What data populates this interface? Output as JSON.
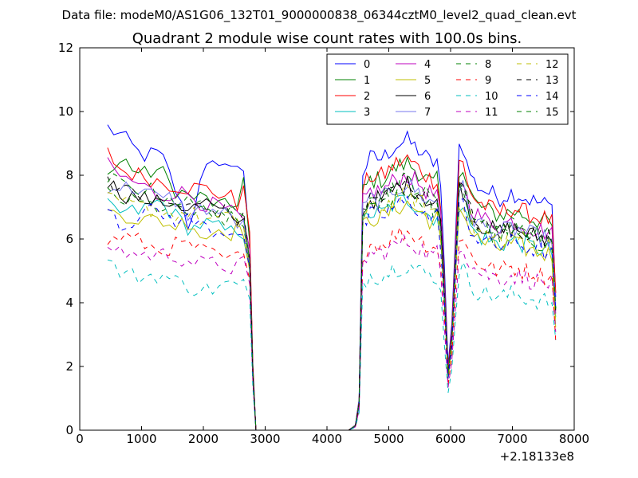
{
  "chart_data": {
    "type": "line",
    "suptitle": "Data file: modeM0/AS1G06_132T01_9000000838_06344cztM0_level2_quad_clean.evt",
    "title": "Quadrant 2 module wise count rates with 100.0s bins.",
    "xlabel": "",
    "ylabel": "",
    "x_offset_label": "+2.18133e8",
    "xlim": [
      0,
      8000
    ],
    "ylim": [
      0,
      12
    ],
    "x_ticks": [
      0,
      1000,
      2000,
      3000,
      4000,
      5000,
      6000,
      7000,
      8000
    ],
    "y_ticks": [
      0,
      2,
      4,
      6,
      8,
      10,
      12
    ],
    "grid": false,
    "legend_position": "top-right",
    "legend_columns": 4,
    "series": [
      {
        "name": "0",
        "color": "#0000ff",
        "dash": "solid",
        "anchors": [
          [
            450,
            9.5
          ],
          [
            700,
            9.2
          ],
          [
            1000,
            8.6
          ],
          [
            1300,
            8.7
          ],
          [
            1500,
            7.8
          ],
          [
            1800,
            6.2
          ],
          [
            2000,
            8.6
          ],
          [
            2300,
            8.0
          ],
          [
            2450,
            8.5
          ],
          [
            2550,
            8.3
          ],
          [
            2650,
            8.0
          ],
          [
            2750,
            6.0
          ]
        ]
      },
      {
        "name": "1",
        "color": "#008000",
        "dash": "solid",
        "anchors": [
          [
            450,
            8.0
          ],
          [
            700,
            8.5
          ],
          [
            1000,
            8.0
          ],
          [
            1300,
            8.2
          ],
          [
            1500,
            7.6
          ],
          [
            1800,
            7.3
          ],
          [
            2000,
            7.3
          ],
          [
            2300,
            7.0
          ],
          [
            2450,
            7.0
          ],
          [
            2550,
            7.2
          ],
          [
            2650,
            7.9
          ],
          [
            2750,
            5.8
          ]
        ]
      },
      {
        "name": "2",
        "color": "#ff0000",
        "dash": "solid",
        "anchors": [
          [
            450,
            8.7
          ],
          [
            700,
            8.1
          ],
          [
            1000,
            8.0
          ],
          [
            1300,
            7.8
          ],
          [
            1500,
            7.7
          ],
          [
            1800,
            7.6
          ],
          [
            2000,
            7.6
          ],
          [
            2300,
            7.4
          ],
          [
            2450,
            7.3
          ],
          [
            2550,
            7.0
          ],
          [
            2650,
            7.9
          ],
          [
            2750,
            6.0
          ]
        ]
      },
      {
        "name": "3",
        "color": "#00bfbf",
        "dash": "solid",
        "anchors": [
          [
            450,
            7.0
          ],
          [
            700,
            6.8
          ],
          [
            1000,
            6.9
          ],
          [
            1300,
            7.2
          ],
          [
            1500,
            6.8
          ],
          [
            1800,
            6.3
          ],
          [
            2000,
            6.5
          ],
          [
            2300,
            6.3
          ],
          [
            2450,
            6.2
          ],
          [
            2550,
            6.3
          ],
          [
            2650,
            6.2
          ],
          [
            2750,
            5.2
          ]
        ]
      },
      {
        "name": "4",
        "color": "#bf00bf",
        "dash": "solid",
        "anchors": [
          [
            450,
            8.3
          ],
          [
            700,
            7.9
          ],
          [
            1000,
            7.7
          ],
          [
            1300,
            7.3
          ],
          [
            1500,
            7.5
          ],
          [
            1800,
            7.4
          ],
          [
            2000,
            7.1
          ],
          [
            2300,
            7.0
          ],
          [
            2450,
            6.8
          ],
          [
            2550,
            6.7
          ],
          [
            2650,
            6.5
          ],
          [
            2750,
            5.5
          ]
        ]
      },
      {
        "name": "5",
        "color": "#bfbf00",
        "dash": "solid",
        "anchors": [
          [
            450,
            6.8
          ],
          [
            700,
            6.8
          ],
          [
            1000,
            6.6
          ],
          [
            1300,
            6.6
          ],
          [
            1500,
            6.4
          ],
          [
            1800,
            6.6
          ],
          [
            2000,
            6.0
          ],
          [
            2300,
            6.4
          ],
          [
            2450,
            6.2
          ],
          [
            2550,
            6.4
          ],
          [
            2650,
            6.3
          ],
          [
            2750,
            5.0
          ]
        ]
      },
      {
        "name": "6",
        "color": "#000000",
        "dash": "solid",
        "anchors": [
          [
            450,
            7.8
          ],
          [
            700,
            7.4
          ],
          [
            1000,
            7.3
          ],
          [
            1300,
            7.1
          ],
          [
            1500,
            7.2
          ],
          [
            1800,
            6.9
          ],
          [
            2000,
            7.2
          ],
          [
            2300,
            6.8
          ],
          [
            2450,
            6.6
          ],
          [
            2550,
            6.6
          ],
          [
            2650,
            6.5
          ],
          [
            2750,
            5.3
          ]
        ]
      },
      {
        "name": "7",
        "color": "#7777ee",
        "dash": "solid",
        "anchors": [
          [
            450,
            7.7
          ],
          [
            700,
            7.6
          ],
          [
            1000,
            7.6
          ],
          [
            1300,
            7.2
          ],
          [
            1500,
            7.3
          ],
          [
            1800,
            6.7
          ],
          [
            2000,
            7.0
          ],
          [
            2300,
            6.8
          ],
          [
            2450,
            6.7
          ],
          [
            2550,
            6.5
          ],
          [
            2650,
            6.4
          ],
          [
            2750,
            5.2
          ]
        ]
      },
      {
        "name": "8",
        "color": "#008000",
        "dash": "dash",
        "anchors": [
          [
            450,
            7.4
          ],
          [
            700,
            7.2
          ],
          [
            1000,
            7.1
          ],
          [
            1300,
            7.0
          ],
          [
            1500,
            6.9
          ],
          [
            1800,
            6.8
          ],
          [
            2000,
            6.8
          ],
          [
            2300,
            6.6
          ],
          [
            2450,
            6.6
          ],
          [
            2550,
            6.5
          ],
          [
            2650,
            6.4
          ],
          [
            2750,
            5.2
          ]
        ]
      },
      {
        "name": "9",
        "color": "#ff0000",
        "dash": "dash",
        "anchors": [
          [
            450,
            5.9
          ],
          [
            700,
            6.1
          ],
          [
            1000,
            5.9
          ],
          [
            1300,
            5.6
          ],
          [
            1500,
            5.8
          ],
          [
            1800,
            5.8
          ],
          [
            2000,
            5.6
          ],
          [
            2300,
            5.4
          ],
          [
            2450,
            5.3
          ],
          [
            2550,
            5.5
          ],
          [
            2650,
            5.4
          ],
          [
            2750,
            4.5
          ]
        ]
      },
      {
        "name": "10",
        "color": "#00bfbf",
        "dash": "dash",
        "anchors": [
          [
            450,
            5.3
          ],
          [
            700,
            4.9
          ],
          [
            1000,
            4.8
          ],
          [
            1300,
            4.9
          ],
          [
            1500,
            4.7
          ],
          [
            1800,
            4.5
          ],
          [
            2000,
            4.4
          ],
          [
            2300,
            4.5
          ],
          [
            2450,
            4.6
          ],
          [
            2550,
            4.5
          ],
          [
            2650,
            4.6
          ],
          [
            2750,
            3.9
          ]
        ]
      },
      {
        "name": "11",
        "color": "#bf00bf",
        "dash": "dash",
        "anchors": [
          [
            450,
            5.8
          ],
          [
            700,
            5.6
          ],
          [
            1000,
            5.5
          ],
          [
            1300,
            5.5
          ],
          [
            1500,
            5.5
          ],
          [
            1800,
            5.3
          ],
          [
            2000,
            5.2
          ],
          [
            2300,
            5.2
          ],
          [
            2450,
            5.1
          ],
          [
            2550,
            5.2
          ],
          [
            2650,
            5.2
          ],
          [
            2750,
            4.4
          ]
        ]
      },
      {
        "name": "12",
        "color": "#bfbf00",
        "dash": "dash",
        "anchors": [
          [
            450,
            7.2
          ],
          [
            700,
            7.1
          ],
          [
            1000,
            7.0
          ],
          [
            1300,
            6.9
          ],
          [
            1500,
            6.8
          ],
          [
            1800,
            6.8
          ],
          [
            2000,
            6.6
          ],
          [
            2300,
            6.6
          ],
          [
            2450,
            6.6
          ],
          [
            2550,
            6.5
          ],
          [
            2650,
            6.4
          ],
          [
            2750,
            5.1
          ]
        ]
      },
      {
        "name": "13",
        "color": "#000000",
        "dash": "dash",
        "anchors": [
          [
            450,
            7.9
          ],
          [
            700,
            7.5
          ],
          [
            1000,
            7.3
          ],
          [
            1300,
            7.1
          ],
          [
            1500,
            7.1
          ],
          [
            1800,
            7.0
          ],
          [
            2000,
            6.9
          ],
          [
            2300,
            6.9
          ],
          [
            2450,
            6.8
          ],
          [
            2550,
            6.6
          ],
          [
            2650,
            6.6
          ],
          [
            2750,
            5.3
          ]
        ]
      },
      {
        "name": "14",
        "color": "#0000ff",
        "dash": "dash",
        "anchors": [
          [
            450,
            7.2
          ],
          [
            700,
            6.3
          ],
          [
            1000,
            6.9
          ],
          [
            1300,
            6.8
          ],
          [
            1500,
            6.6
          ],
          [
            1800,
            6.6
          ],
          [
            2000,
            6.4
          ],
          [
            2300,
            6.2
          ],
          [
            2450,
            6.3
          ],
          [
            2550,
            6.3
          ],
          [
            2650,
            6.2
          ],
          [
            2750,
            5.0
          ]
        ]
      },
      {
        "name": "15",
        "color": "#008000",
        "dash": "dash",
        "anchors": [
          [
            450,
            7.9
          ],
          [
            700,
            7.7
          ],
          [
            1000,
            7.6
          ],
          [
            1300,
            7.4
          ],
          [
            1500,
            7.3
          ],
          [
            1800,
            7.1
          ],
          [
            2000,
            7.0
          ],
          [
            2300,
            6.9
          ],
          [
            2450,
            6.8
          ],
          [
            2550,
            6.6
          ],
          [
            2650,
            6.6
          ],
          [
            2750,
            5.3
          ]
        ]
      }
    ]
  }
}
